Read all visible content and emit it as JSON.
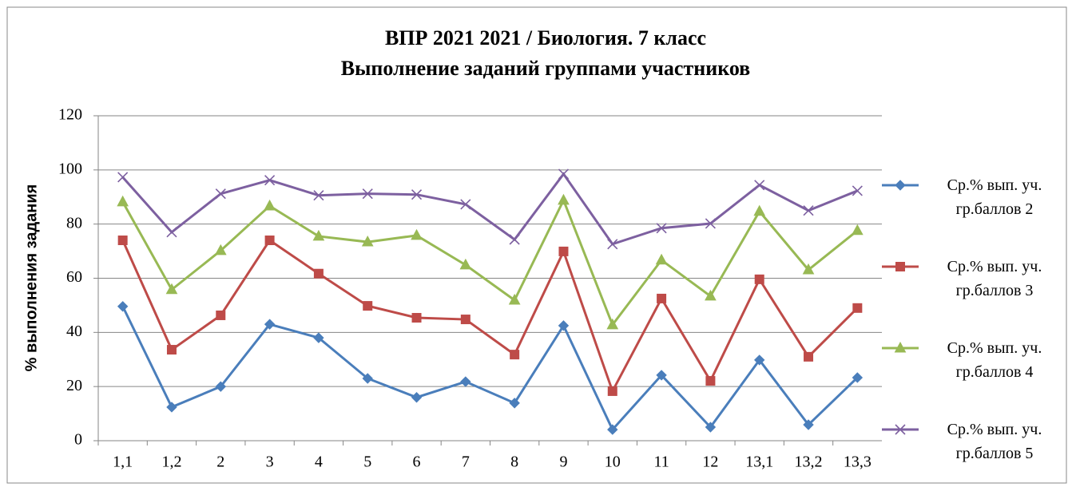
{
  "chart_data": {
    "type": "line",
    "title": "ВПР 2021 2021 / Биология. 7 класс",
    "subtitle": "Выполнение заданий группами участников",
    "y_label": "% выполнения задания",
    "categories": [
      "1,1",
      "1,2",
      "2",
      "3",
      "4",
      "5",
      "6",
      "7",
      "8",
      "9",
      "10",
      "11",
      "12",
      "13,1",
      "13,2",
      "13,3"
    ],
    "series": [
      {
        "name": "Ср.% вып. уч. гр.баллов 2",
        "color": "#4a7ebb",
        "marker": "diamond",
        "values": [
          49.6,
          12.4,
          20,
          43,
          38,
          23,
          16,
          21.8,
          13.9,
          42.5,
          4.1,
          24.2,
          5,
          29.8,
          5.9,
          23.3
        ]
      },
      {
        "name": "Ср.% вып. уч. гр.баллов 3",
        "color": "#be4b48",
        "marker": "square",
        "values": [
          74,
          33.6,
          46.3,
          74,
          61.7,
          49.8,
          45.4,
          44.8,
          31.8,
          69.9,
          18.3,
          52.5,
          22.1,
          59.6,
          31,
          49
        ]
      },
      {
        "name": "Ср.% вып. уч. гр.баллов 4",
        "color": "#98b954",
        "marker": "triangle",
        "values": [
          88.2,
          55.8,
          70.2,
          86.7,
          75.5,
          73.4,
          75.8,
          64.9,
          51.9,
          88.8,
          42.8,
          66.7,
          53.4,
          84.7,
          63.1,
          77.6
        ]
      },
      {
        "name": "Ср.% вып. уч. гр.баллов 5",
        "color": "#7d60a0",
        "marker": "x",
        "values": [
          97.3,
          77,
          91.2,
          96.2,
          90.6,
          91.2,
          90.9,
          87.3,
          74.3,
          98.5,
          72.6,
          78.5,
          80.2,
          94.4,
          85,
          92.3
        ]
      }
    ],
    "ylim": [
      0,
      120
    ],
    "yticks": [
      0,
      20,
      40,
      60,
      80,
      100,
      120
    ],
    "grid": true,
    "legend": "right"
  }
}
